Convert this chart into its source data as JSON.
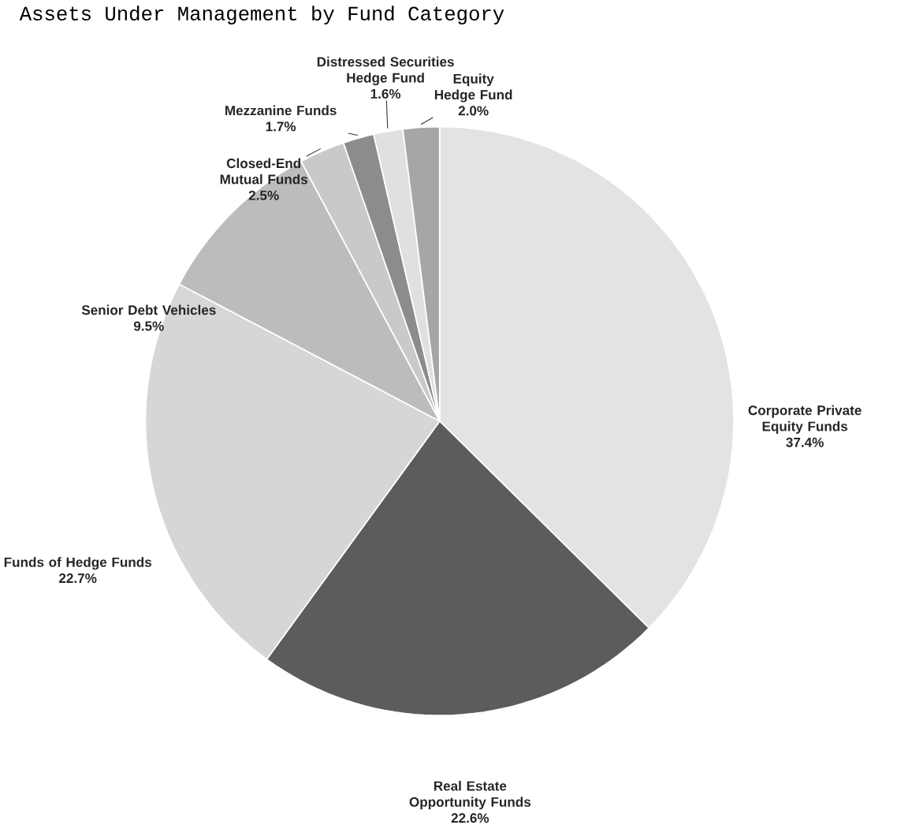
{
  "chart_data": {
    "type": "pie",
    "title": "Assets Under Management by Fund Category",
    "categories": [
      "Corporate Private Equity Funds",
      "Real Estate Opportunity Funds",
      "Funds of Hedge Funds",
      "Senior Debt Vehicles",
      "Closed-End Mutual Funds",
      "Mezzanine Funds",
      "Distressed Securities Hedge Fund",
      "Equity Hedge Fund"
    ],
    "values": [
      37.4,
      22.6,
      22.7,
      9.5,
      2.5,
      1.7,
      1.6,
      2.0
    ],
    "value_labels": [
      "37.4%",
      "22.6%",
      "22.7%",
      "9.5%",
      "2.5%",
      "1.7%",
      "1.6%",
      "2.0%"
    ],
    "colors": [
      "#e3e3e3",
      "#5c5c5c",
      "#d6d6d6",
      "#bcbcbc",
      "#c9c9c9",
      "#8c8c8c",
      "#e0e0e0",
      "#a6a6a6"
    ]
  }
}
